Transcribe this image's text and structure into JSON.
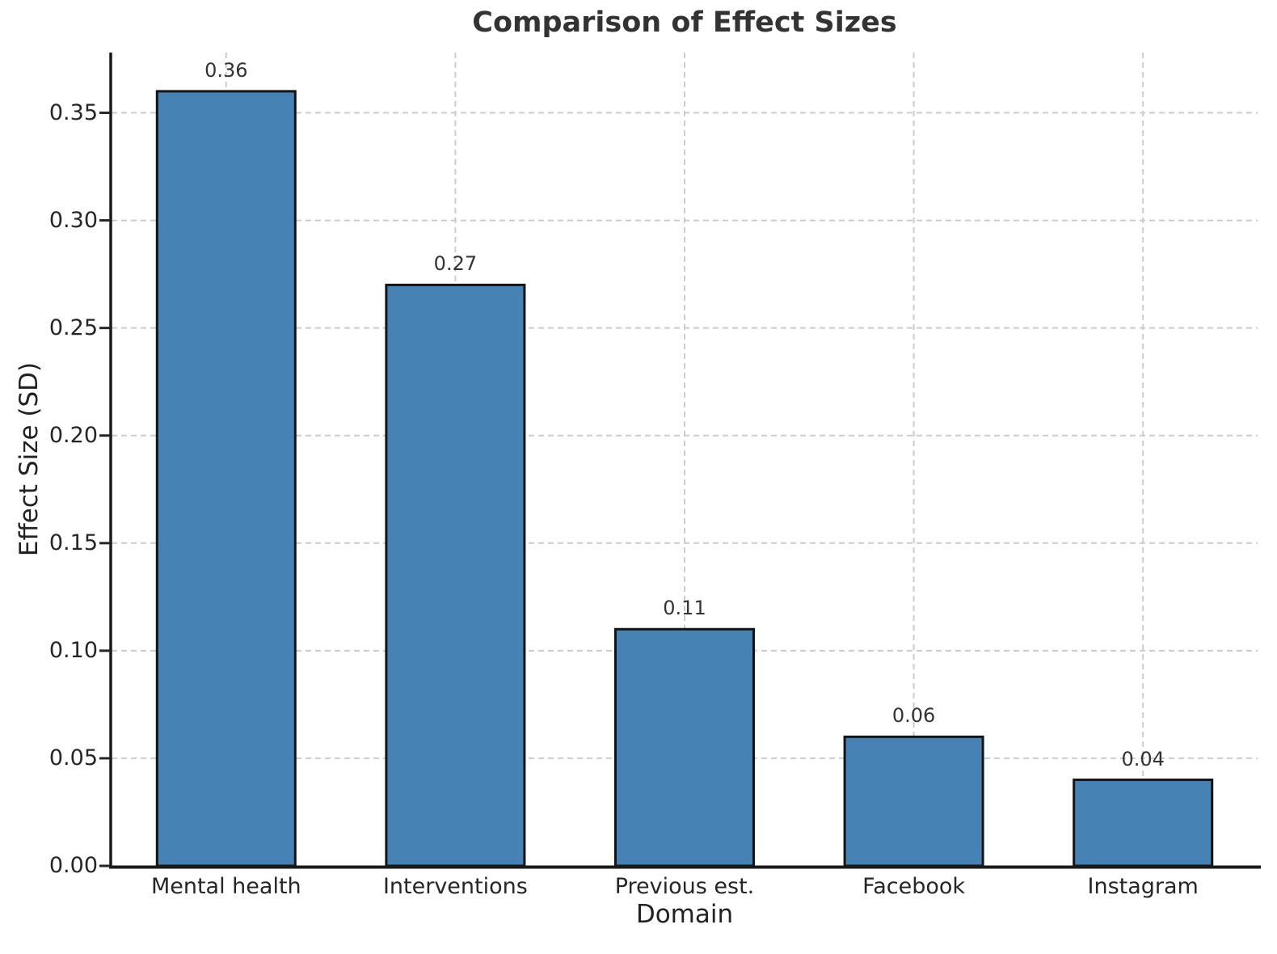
{
  "chart_data": {
    "type": "bar",
    "title": "Comparison of Effect Sizes",
    "xlabel": "Domain",
    "ylabel": "Effect Size (SD)",
    "categories": [
      "Mental health",
      "Interventions",
      "Previous est.",
      "Facebook",
      "Instagram"
    ],
    "values": [
      0.36,
      0.27,
      0.11,
      0.06,
      0.04
    ],
    "value_labels": [
      "0.36",
      "0.27",
      "0.11",
      "0.06",
      "0.04"
    ],
    "yticks": [
      0.0,
      0.05,
      0.1,
      0.15,
      0.2,
      0.25,
      0.3,
      0.35
    ],
    "ytick_labels": [
      "0.00",
      "0.05",
      "0.10",
      "0.15",
      "0.20",
      "0.25",
      "0.30",
      "0.35"
    ],
    "ylim": [
      0,
      0.378
    ],
    "grid": "dashed, horizontal and vertical",
    "legend": null,
    "colors": {
      "bar_fill": "#4682B4",
      "bar_edge": "#141414",
      "axis_line": "#1a1a1a",
      "grid_line": "#cccccc",
      "tick_text": "#262626",
      "title_text": "#333333"
    }
  }
}
